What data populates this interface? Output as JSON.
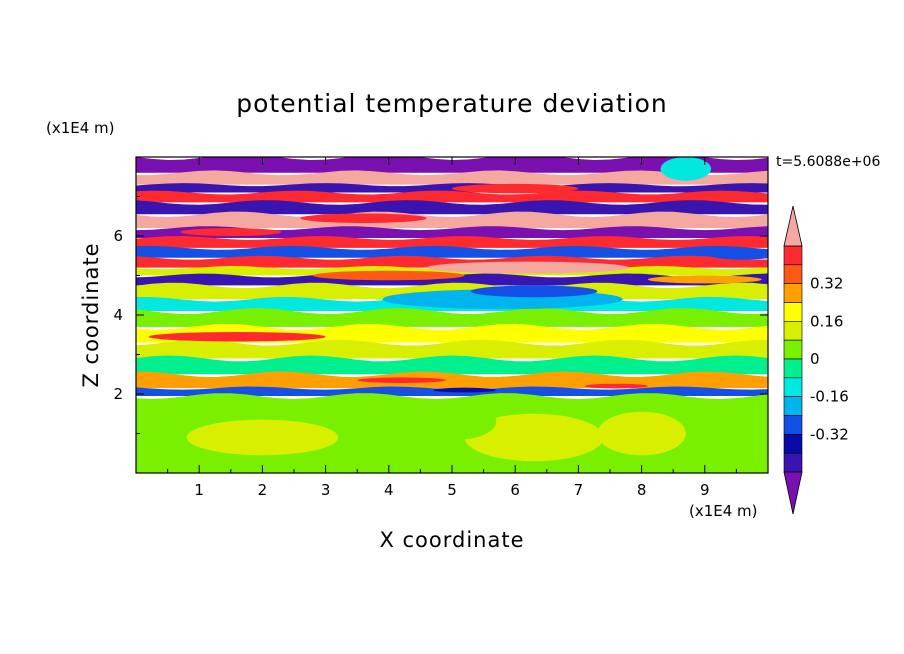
{
  "chart_data": {
    "type": "heatmap",
    "title": "potential temperature deviation",
    "xlabel": "X coordinate",
    "ylabel": "Z coordinate",
    "x_unit_label": "(x1E4 m)",
    "y_unit_label": "(x1E4 m)",
    "time_label": "t=5.6088e+06",
    "xlim": [
      0,
      10
    ],
    "ylim": [
      0,
      8
    ],
    "x_ticks": [
      "1",
      "2",
      "3",
      "4",
      "5",
      "6",
      "7",
      "8",
      "9"
    ],
    "y_ticks": [
      "2",
      "4",
      "6"
    ],
    "colorbar": {
      "levels": [
        -0.48,
        -0.4,
        -0.32,
        -0.24,
        -0.16,
        -0.08,
        0,
        0.08,
        0.16,
        0.24,
        0.32,
        0.4,
        0.48
      ],
      "labels": [
        "0.32",
        "0.16",
        "0",
        "-0.16",
        "-0.32"
      ],
      "label_values": [
        0.32,
        0.16,
        0,
        -0.16,
        -0.32
      ],
      "colors": [
        "#7a10b0",
        "#3a14b0",
        "#0a0aa8",
        "#1450e6",
        "#00b4f0",
        "#00e8e0",
        "#00f090",
        "#78f000",
        "#d8f000",
        "#ffff00",
        "#ffa000",
        "#ff5a14",
        "#ff2a30",
        "#f5a8a0"
      ],
      "extend_low_color": "#7a10b0",
      "extend_high_color": "#f5a8a0"
    },
    "bands": [
      {
        "z": [
          7.6,
          8.0
        ],
        "value": -0.5
      },
      {
        "z": [
          7.3,
          7.6
        ],
        "value": 0.5
      },
      {
        "z": [
          7.1,
          7.3
        ],
        "value": -0.45
      },
      {
        "z": [
          6.85,
          7.1
        ],
        "value": 0.45
      },
      {
        "z": [
          6.55,
          6.85
        ],
        "value": -0.45
      },
      {
        "z": [
          6.2,
          6.55
        ],
        "value": 0.5
      },
      {
        "z": [
          5.95,
          6.2
        ],
        "value": -0.5
      },
      {
        "z": [
          5.7,
          5.95
        ],
        "value": 0.45
      },
      {
        "z": [
          5.45,
          5.7
        ],
        "value": -0.3
      },
      {
        "z": [
          5.2,
          5.45
        ],
        "value": 0.45
      },
      {
        "z": [
          5.0,
          5.2
        ],
        "value": 0.1
      },
      {
        "z": [
          4.75,
          5.0
        ],
        "value": -0.45
      },
      {
        "z": [
          4.4,
          4.75
        ],
        "value": 0.12
      },
      {
        "z": [
          4.1,
          4.4
        ],
        "value": -0.1
      },
      {
        "z": [
          3.7,
          4.1
        ],
        "value": 0.05
      },
      {
        "z": [
          3.3,
          3.7
        ],
        "value": 0.2
      },
      {
        "z": [
          2.9,
          3.3
        ],
        "value": 0.1
      },
      {
        "z": [
          2.5,
          2.9
        ],
        "value": -0.04
      },
      {
        "z": [
          2.15,
          2.5
        ],
        "value": 0.3
      },
      {
        "z": [
          1.95,
          2.15
        ],
        "value": -0.3
      },
      {
        "z": [
          0,
          1.95
        ],
        "value": 0.06
      }
    ],
    "blobs": [
      {
        "x": 2.0,
        "z": 0.9,
        "rx": 1.2,
        "rz": 0.45,
        "value": 0.1
      },
      {
        "x": 6.3,
        "z": 0.9,
        "rx": 1.1,
        "rz": 0.6,
        "value": 0.1
      },
      {
        "x": 8.0,
        "z": 1.0,
        "rx": 0.7,
        "rz": 0.55,
        "value": 0.1
      },
      {
        "x": 4.2,
        "z": 0.6,
        "rx": 1.0,
        "rz": 0.45,
        "value": 0.02
      },
      {
        "x": 5.1,
        "z": 1.3,
        "rx": 0.6,
        "rz": 0.45,
        "value": 0.02
      },
      {
        "x": 1.6,
        "z": 3.45,
        "rx": 1.4,
        "rz": 0.12,
        "value": 0.42
      },
      {
        "x": 5.8,
        "z": 4.4,
        "rx": 1.9,
        "rz": 0.25,
        "value": -0.2
      },
      {
        "x": 6.3,
        "z": 4.6,
        "rx": 1.0,
        "rz": 0.15,
        "value": -0.3
      },
      {
        "x": 4.2,
        "z": 2.35,
        "rx": 0.7,
        "rz": 0.07,
        "value": 0.45
      },
      {
        "x": 7.6,
        "z": 2.2,
        "rx": 0.5,
        "rz": 0.06,
        "value": 0.4
      },
      {
        "x": 5.2,
        "z": 2.1,
        "rx": 0.5,
        "rz": 0.06,
        "value": -0.4
      },
      {
        "x": 4.0,
        "z": 5.0,
        "rx": 1.2,
        "rz": 0.12,
        "value": 0.38
      },
      {
        "x": 6.2,
        "z": 5.2,
        "rx": 1.6,
        "rz": 0.15,
        "value": 0.48
      },
      {
        "x": 1.5,
        "z": 6.1,
        "rx": 0.8,
        "rz": 0.1,
        "value": 0.4
      },
      {
        "x": 3.6,
        "z": 6.45,
        "rx": 1.0,
        "rz": 0.12,
        "value": 0.42
      },
      {
        "x": 6.0,
        "z": 7.2,
        "rx": 1.0,
        "rz": 0.12,
        "value": 0.42
      },
      {
        "x": 8.7,
        "z": 7.7,
        "rx": 0.4,
        "rz": 0.3,
        "value": -0.12
      },
      {
        "x": 9.6,
        "z": 5.5,
        "rx": 0.5,
        "rz": 0.1,
        "value": -0.3
      },
      {
        "x": 9.0,
        "z": 4.9,
        "rx": 0.9,
        "rz": 0.1,
        "value": 0.3
      }
    ]
  }
}
